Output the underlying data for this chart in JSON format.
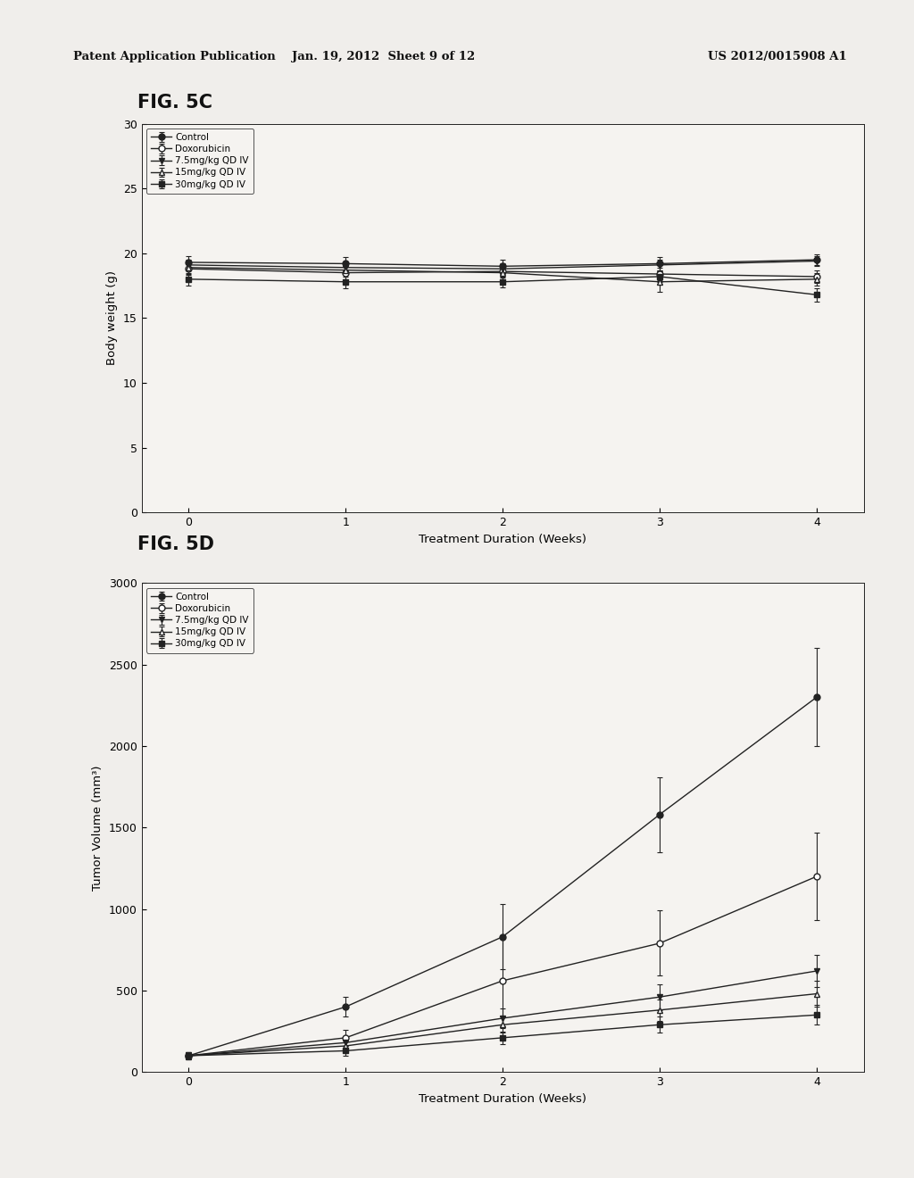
{
  "fig5c": {
    "title": "FIG. 5C",
    "xlabel": "Treatment Duration (Weeks)",
    "ylabel": "Body weight (g)",
    "xlim": [
      -0.3,
      4.3
    ],
    "ylim": [
      0,
      30
    ],
    "yticks": [
      0,
      5,
      10,
      15,
      20,
      25,
      30
    ],
    "xticks": [
      0,
      1,
      2,
      3,
      4
    ],
    "series": [
      {
        "label": "Control",
        "x": [
          0,
          1,
          2,
          3,
          4
        ],
        "y": [
          19.3,
          19.2,
          19.0,
          19.2,
          19.5
        ],
        "yerr": [
          0.5,
          0.5,
          0.5,
          0.5,
          0.4
        ],
        "marker": "o",
        "fillstyle": "full",
        "color": "#222222",
        "linestyle": "-"
      },
      {
        "label": "Doxorubicin",
        "x": [
          0,
          1,
          2,
          3,
          4
        ],
        "y": [
          18.8,
          18.5,
          18.6,
          18.4,
          18.2
        ],
        "yerr": [
          0.5,
          0.5,
          0.5,
          0.5,
          0.5
        ],
        "marker": "o",
        "fillstyle": "none",
        "color": "#222222",
        "linestyle": "-"
      },
      {
        "label": "7.5mg/kg QD IV",
        "x": [
          0,
          1,
          2,
          3,
          4
        ],
        "y": [
          19.1,
          18.9,
          18.8,
          19.1,
          19.4
        ],
        "yerr": [
          0.4,
          0.4,
          0.4,
          0.4,
          0.4
        ],
        "marker": "v",
        "fillstyle": "full",
        "color": "#222222",
        "linestyle": "-"
      },
      {
        "label": "15mg/kg QD IV",
        "x": [
          0,
          1,
          2,
          3,
          4
        ],
        "y": [
          18.9,
          18.7,
          18.5,
          17.8,
          18.0
        ],
        "yerr": [
          0.5,
          0.5,
          0.5,
          0.8,
          0.5
        ],
        "marker": "^",
        "fillstyle": "none",
        "color": "#222222",
        "linestyle": "-"
      },
      {
        "label": "30mg/kg QD IV",
        "x": [
          0,
          1,
          2,
          3,
          4
        ],
        "y": [
          18.0,
          17.8,
          17.8,
          18.2,
          16.8
        ],
        "yerr": [
          0.5,
          0.5,
          0.4,
          0.4,
          0.5
        ],
        "marker": "s",
        "fillstyle": "full",
        "color": "#222222",
        "linestyle": "-"
      }
    ]
  },
  "fig5d": {
    "title": "FIG. 5D",
    "xlabel": "Treatment Duration (Weeks)",
    "ylabel": "Tumor Volume (mm³)",
    "xlim": [
      -0.3,
      4.3
    ],
    "ylim": [
      0,
      3000
    ],
    "yticks": [
      0,
      500,
      1000,
      1500,
      2000,
      2500,
      3000
    ],
    "xticks": [
      0,
      1,
      2,
      3,
      4
    ],
    "series": [
      {
        "label": "Control",
        "x": [
          0,
          1,
          2,
          3,
          4
        ],
        "y": [
          100,
          400,
          830,
          1580,
          2300
        ],
        "yerr": [
          20,
          60,
          200,
          230,
          300
        ],
        "marker": "o",
        "fillstyle": "full",
        "color": "#222222",
        "linestyle": "-"
      },
      {
        "label": "Doxorubicin",
        "x": [
          0,
          1,
          2,
          3,
          4
        ],
        "y": [
          100,
          210,
          560,
          790,
          1200
        ],
        "yerr": [
          20,
          50,
          280,
          200,
          270
        ],
        "marker": "o",
        "fillstyle": "none",
        "color": "#222222",
        "linestyle": "-"
      },
      {
        "label": "7.5mg/kg QD IV",
        "x": [
          0,
          1,
          2,
          3,
          4
        ],
        "y": [
          100,
          180,
          330,
          460,
          620
        ],
        "yerr": [
          20,
          40,
          60,
          80,
          100
        ],
        "marker": "v",
        "fillstyle": "full",
        "color": "#222222",
        "linestyle": "-"
      },
      {
        "label": "15mg/kg QD IV",
        "x": [
          0,
          1,
          2,
          3,
          4
        ],
        "y": [
          100,
          160,
          290,
          380,
          480
        ],
        "yerr": [
          20,
          35,
          50,
          65,
          80
        ],
        "marker": "^",
        "fillstyle": "none",
        "color": "#222222",
        "linestyle": "-"
      },
      {
        "label": "30mg/kg QD IV",
        "x": [
          0,
          1,
          2,
          3,
          4
        ],
        "y": [
          100,
          130,
          210,
          290,
          350
        ],
        "yerr": [
          20,
          30,
          40,
          50,
          60
        ],
        "marker": "s",
        "fillstyle": "full",
        "color": "#222222",
        "linestyle": "-"
      }
    ]
  },
  "header_left": "Patent Application Publication",
  "header_mid": "Jan. 19, 2012  Sheet 9 of 12",
  "header_right": "US 2012/0015908 A1",
  "background_color": "#f0eeeb"
}
